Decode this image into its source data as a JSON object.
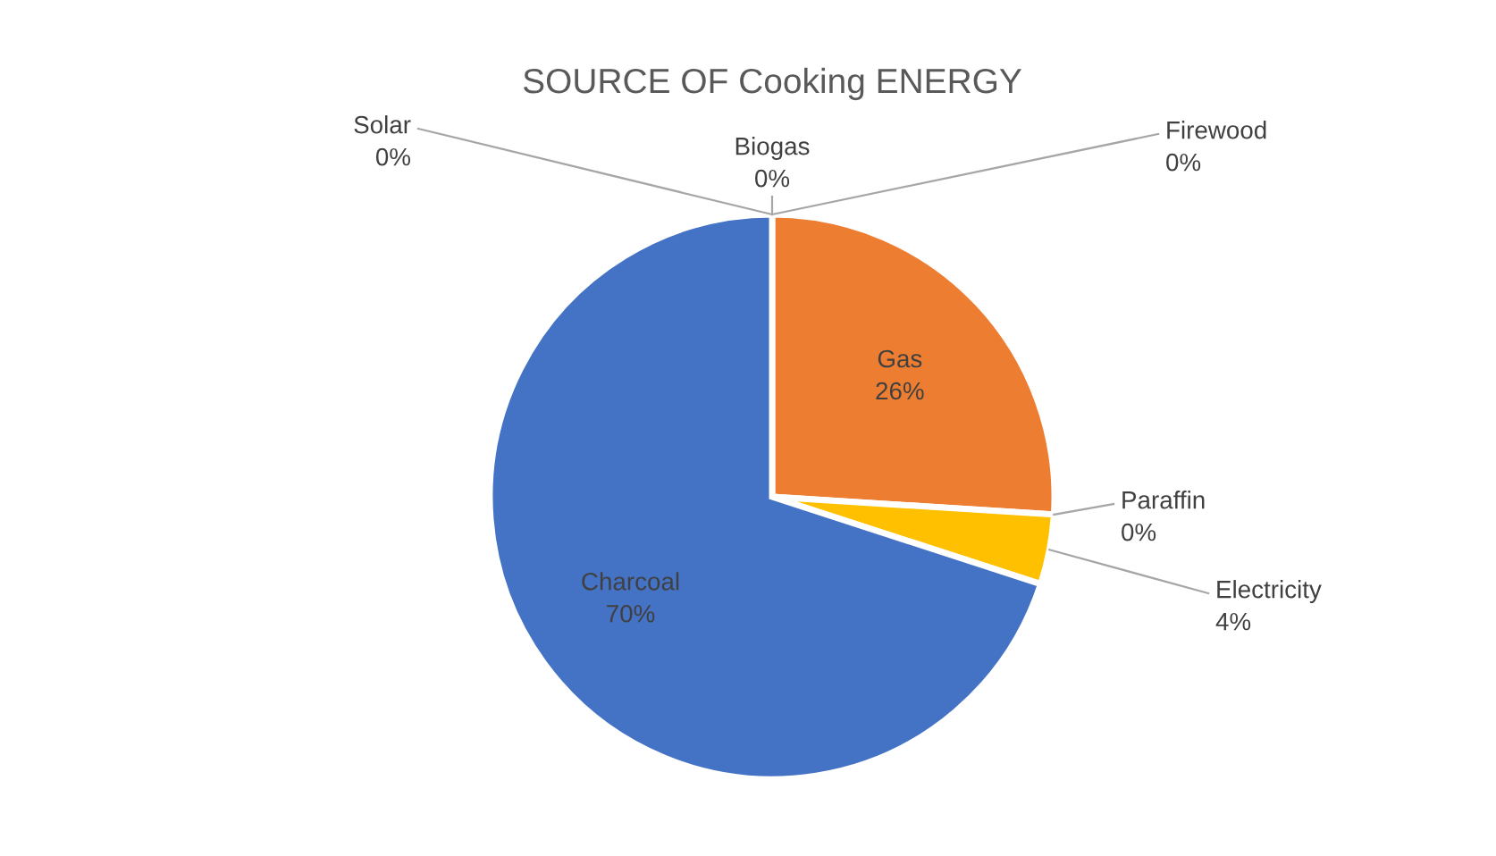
{
  "chart_data": {
    "type": "pie",
    "title": "SOURCE OF Cooking ENERGY",
    "categories": [
      "Gas",
      "Paraffin",
      "Electricity",
      "Charcoal",
      "Solar",
      "Biogas",
      "Firewood"
    ],
    "values": [
      26,
      0,
      4,
      70,
      0,
      0,
      0
    ],
    "value_labels": [
      "26%",
      "0%",
      "4%",
      "70%",
      "0%",
      "0%",
      "0%"
    ],
    "colors": [
      "#ed7d31",
      "#a5a5a5",
      "#ffc000",
      "#4472c4",
      "#5b9bd5",
      "#70ad47",
      "#264478"
    ]
  }
}
